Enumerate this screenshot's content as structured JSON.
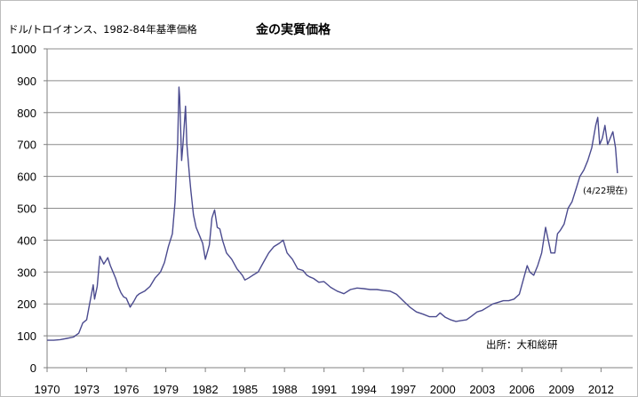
{
  "chart_data": {
    "type": "line",
    "title": "金の実質価格",
    "unit_label": "ドル/トロイオンス、1982-84年基準価格",
    "annotation": "(4/22現在)",
    "source": "出所：大和総研",
    "xlim": [
      1970,
      2014.4
    ],
    "ylim": [
      0,
      1000
    ],
    "y_ticks": [
      0,
      100,
      200,
      300,
      400,
      500,
      600,
      700,
      800,
      900,
      1000
    ],
    "x_ticks": [
      1970,
      1973,
      1976,
      1979,
      1982,
      1985,
      1988,
      1991,
      1994,
      1997,
      2000,
      2003,
      2006,
      2009,
      2012
    ],
    "grid": "horizontal",
    "line_color": "#4b4b8f",
    "series": [
      {
        "x": [
          1970.0,
          1970.5,
          1971.0,
          1971.5,
          1972.0,
          1972.4,
          1972.7,
          1973.0,
          1973.2,
          1973.5,
          1973.6,
          1973.8,
          1974.0,
          1974.3,
          1974.6,
          1974.8,
          1975.0,
          1975.2,
          1975.4,
          1975.6,
          1975.8,
          1976.0,
          1976.3,
          1976.6,
          1976.8,
          1977.0,
          1977.4,
          1977.8,
          1978.2,
          1978.6,
          1978.9,
          1979.2,
          1979.5,
          1979.7,
          1979.9,
          1980.0,
          1980.05,
          1980.2,
          1980.3,
          1980.5,
          1980.6,
          1980.8,
          1980.9,
          1981.1,
          1981.3,
          1981.5,
          1981.8,
          1982.0,
          1982.3,
          1982.5,
          1982.7,
          1982.9,
          1983.1,
          1983.3,
          1983.6,
          1984.0,
          1984.4,
          1984.8,
          1985.0,
          1985.3,
          1985.6,
          1986.0,
          1986.4,
          1986.8,
          1987.2,
          1987.6,
          1987.9,
          1988.2,
          1988.6,
          1989.0,
          1989.4,
          1989.7,
          1989.9,
          1990.2,
          1990.6,
          1991.0,
          1991.5,
          1992.0,
          1992.5,
          1993.0,
          1993.5,
          1994.0,
          1994.5,
          1995.0,
          1995.5,
          1996.0,
          1996.5,
          1997.0,
          1997.5,
          1998.0,
          1998.5,
          1999.0,
          1999.5,
          1999.8,
          2000.2,
          2000.6,
          2001.0,
          2001.4,
          2001.8,
          2002.2,
          2002.6,
          2003.0,
          2003.4,
          2003.8,
          2004.2,
          2004.6,
          2005.0,
          2005.4,
          2005.8,
          2006.2,
          2006.4,
          2006.6,
          2006.9,
          2007.2,
          2007.5,
          2007.8,
          2008.0,
          2008.2,
          2008.5,
          2008.7,
          2008.9,
          2009.2,
          2009.5,
          2009.8,
          2010.1,
          2010.4,
          2010.7,
          2011.0,
          2011.3,
          2011.6,
          2011.75,
          2011.9,
          2012.1,
          2012.3,
          2012.5,
          2012.7,
          2012.9,
          2013.1,
          2013.25
        ],
        "values": [
          86,
          86,
          88,
          92,
          96,
          108,
          140,
          150,
          195,
          260,
          215,
          255,
          350,
          325,
          345,
          320,
          300,
          280,
          255,
          235,
          222,
          218,
          190,
          210,
          225,
          232,
          240,
          255,
          282,
          300,
          330,
          380,
          420,
          520,
          700,
          880,
          850,
          650,
          700,
          820,
          700,
          600,
          555,
          480,
          440,
          420,
          390,
          340,
          385,
          470,
          495,
          440,
          435,
          400,
          360,
          340,
          310,
          290,
          275,
          282,
          290,
          300,
          330,
          360,
          380,
          390,
          400,
          360,
          340,
          310,
          305,
          290,
          285,
          280,
          268,
          270,
          252,
          240,
          232,
          245,
          250,
          248,
          245,
          245,
          242,
          240,
          230,
          210,
          190,
          175,
          168,
          160,
          160,
          172,
          158,
          150,
          145,
          148,
          150,
          162,
          175,
          180,
          190,
          200,
          205,
          210,
          210,
          215,
          230,
          290,
          320,
          300,
          290,
          320,
          360,
          440,
          400,
          360,
          360,
          420,
          430,
          450,
          500,
          520,
          560,
          600,
          620,
          650,
          690,
          760,
          785,
          700,
          720,
          760,
          700,
          720,
          740,
          690,
          610
        ]
      }
    ]
  }
}
